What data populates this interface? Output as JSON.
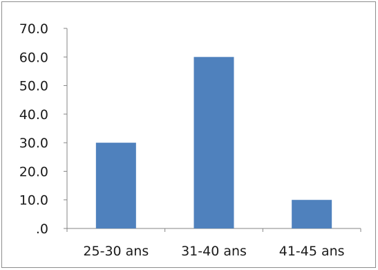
{
  "chart_data": {
    "type": "bar",
    "categories": [
      "25-30 ans",
      "31-40 ans",
      "41-45 ans"
    ],
    "values": [
      30.0,
      60.0,
      10.0
    ],
    "y_tick_labels": [
      ".0",
      "10.0",
      "20.0",
      "30.0",
      "40.0",
      "50.0",
      "60.0",
      "70.0"
    ],
    "ylim": [
      0,
      70
    ],
    "y_step": 10,
    "grid": false,
    "legend": "none",
    "colors": {
      "bar": "#4f81bd",
      "axis": "#868686"
    }
  }
}
